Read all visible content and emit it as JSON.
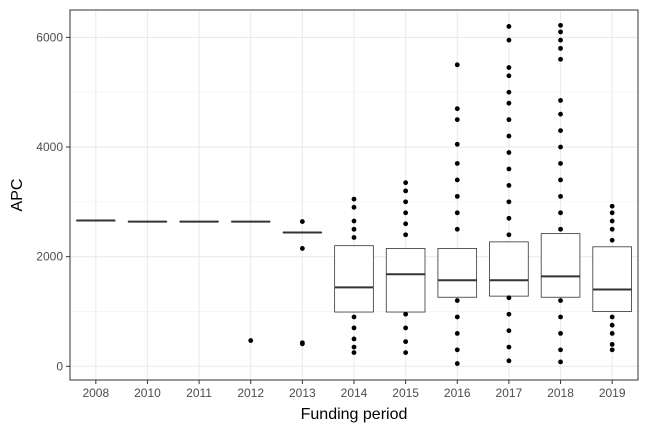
{
  "chart_data": {
    "type": "boxplot",
    "title": "",
    "xlabel": "Funding period",
    "ylabel": "APC",
    "ylim": [
      -250,
      6500
    ],
    "yticks": [
      0,
      2000,
      4000,
      6000
    ],
    "grid": true,
    "legend": "none",
    "categories": [
      "2008",
      "2010",
      "2011",
      "2012",
      "2013",
      "2014",
      "2015",
      "2016",
      "2017",
      "2018",
      "2019"
    ],
    "boxes": [
      {
        "period": "2008",
        "q1": 2660,
        "median": 2660,
        "q3": 2660,
        "outliers": []
      },
      {
        "period": "2010",
        "q1": 2640,
        "median": 2640,
        "q3": 2640,
        "outliers": []
      },
      {
        "period": "2011",
        "q1": 2640,
        "median": 2640,
        "q3": 2640,
        "outliers": []
      },
      {
        "period": "2012",
        "q1": 2640,
        "median": 2640,
        "q3": 2640,
        "outliers": [
          470
        ]
      },
      {
        "period": "2013",
        "q1": 2440,
        "median": 2440,
        "q3": 2440,
        "outliers": [
          2640,
          2150,
          430,
          410
        ]
      },
      {
        "period": "2014",
        "q1": 990,
        "median": 1440,
        "q3": 2200,
        "outliers": [
          3050,
          2900,
          2650,
          2500,
          2350,
          900,
          700,
          500,
          350,
          250
        ]
      },
      {
        "period": "2015",
        "q1": 990,
        "median": 1680,
        "q3": 2150,
        "outliers": [
          3350,
          3200,
          3000,
          2800,
          2600,
          2400,
          950,
          700,
          450,
          250
        ]
      },
      {
        "period": "2016",
        "q1": 1260,
        "median": 1570,
        "q3": 2150,
        "outliers": [
          5500,
          4700,
          4500,
          4050,
          3700,
          3400,
          3100,
          2800,
          2500,
          1200,
          900,
          600,
          300,
          50
        ]
      },
      {
        "period": "2017",
        "q1": 1280,
        "median": 1570,
        "q3": 2270,
        "outliers": [
          6200,
          5950,
          5450,
          5300,
          5000,
          4800,
          4500,
          4200,
          3900,
          3600,
          3300,
          3000,
          2700,
          2400,
          1250,
          950,
          650,
          350,
          100
        ]
      },
      {
        "period": "2018",
        "q1": 1260,
        "median": 1640,
        "q3": 2420,
        "outliers": [
          6220,
          6100,
          5950,
          5800,
          5600,
          4850,
          4600,
          4300,
          4000,
          3700,
          3400,
          3100,
          2800,
          2500,
          1200,
          900,
          600,
          300,
          80
        ]
      },
      {
        "period": "2019",
        "q1": 1000,
        "median": 1400,
        "q3": 2180,
        "outliers": [
          2920,
          2800,
          2650,
          2500,
          2300,
          900,
          750,
          600,
          400,
          300
        ]
      }
    ]
  }
}
